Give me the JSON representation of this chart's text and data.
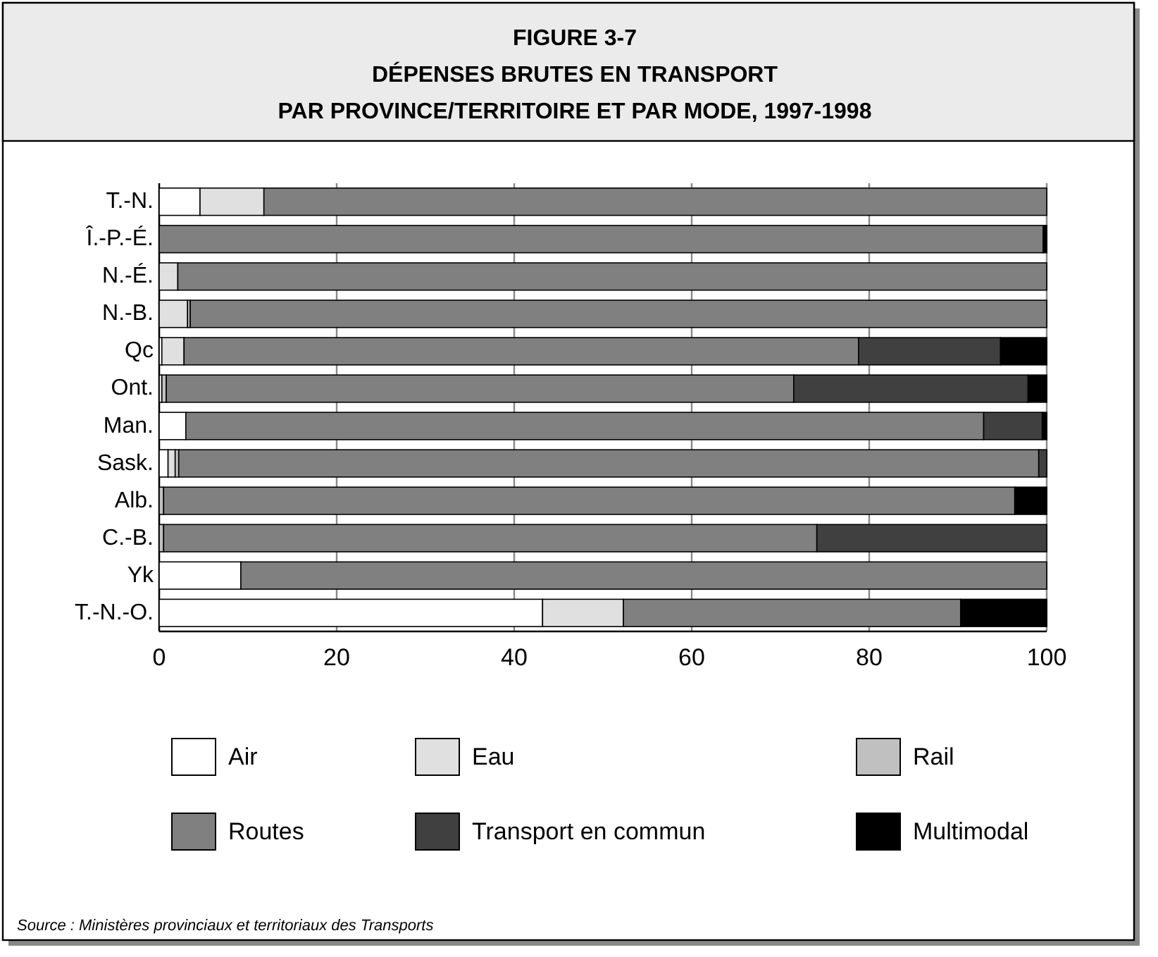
{
  "chart_data": {
    "type": "bar",
    "orientation": "horizontal",
    "stacked": true,
    "title": "FIGURE 3-7\nDÉPENSES BRUTES EN TRANSPORT\nPAR PROVINCE/TERRITOIRE ET PAR MODE, 1997-1998",
    "categories": [
      "T.-N.",
      "Î.-P.-É.",
      "N.-É.",
      "N.-B.",
      "Qc",
      "Ont.",
      "Man.",
      "Sask.",
      "Alb.",
      "C.-B.",
      "Yk",
      "T.-N.-O."
    ],
    "series": [
      {
        "name": "Air",
        "color": "#ffffff",
        "values": [
          4.6,
          0,
          0,
          0,
          0.3,
          null,
          3.0,
          1.0,
          null,
          null,
          9.2,
          43.2
        ]
      },
      {
        "name": "Eau",
        "color": "#e0e0e0",
        "values": [
          7.2,
          0,
          2.1,
          3.2,
          2.5,
          0.3,
          0,
          0.8,
          0,
          0,
          0,
          9.1
        ]
      },
      {
        "name": "Rail",
        "color": "#c0c0c0",
        "values": [
          0,
          0,
          0,
          0.3,
          0,
          0.5,
          0,
          0.4,
          0.5,
          0.5,
          0,
          0
        ]
      },
      {
        "name": "Routes",
        "color": "#808080",
        "values": [
          88.2,
          99.6,
          97.9,
          96.5,
          76.0,
          70.7,
          89.9,
          96.9,
          95.9,
          73.6,
          90.8,
          38.0
        ]
      },
      {
        "name": "Transport en commun",
        "color": "#404040",
        "values": [
          0,
          0,
          0,
          0,
          16.0,
          26.4,
          6.6,
          0.9,
          0,
          25.9,
          0,
          0
        ]
      },
      {
        "name": "Multimodal",
        "color": "#000000",
        "values": [
          0,
          0.4,
          0,
          0,
          5.2,
          2.1,
          0.5,
          0,
          3.6,
          0,
          0,
          9.7
        ]
      }
    ],
    "xlim": [
      0,
      100
    ],
    "xticks": [
      0,
      20,
      40,
      60,
      80,
      100
    ],
    "grid": "x",
    "legend": "bottom",
    "annotations": [
      "Source :  Ministères provinciaux et territoriaux des Transports"
    ]
  }
}
